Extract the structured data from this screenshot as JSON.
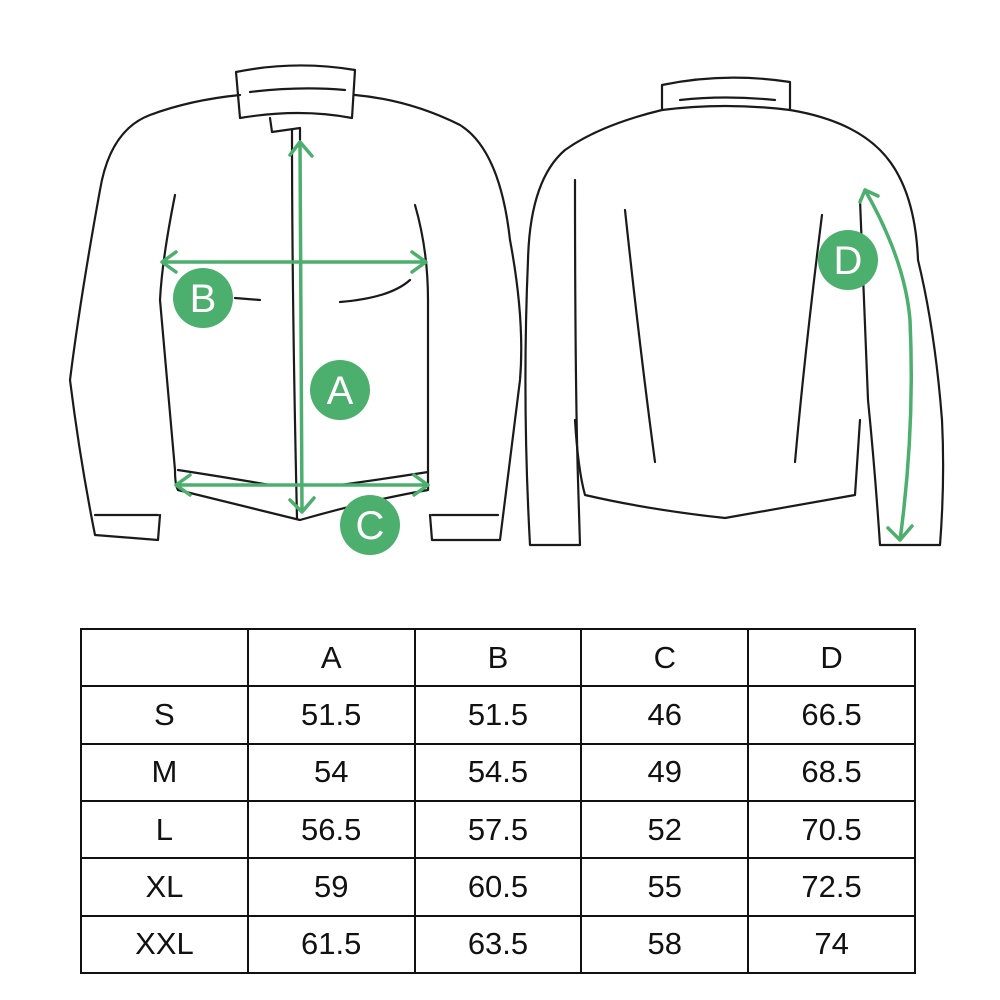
{
  "diagram": {
    "accent_color": "#4caf6e",
    "front_labels": [
      "A",
      "B",
      "C"
    ],
    "back_labels": [
      "D"
    ]
  },
  "size_table": {
    "headers": [
      "",
      "A",
      "B",
      "C",
      "D"
    ],
    "rows": [
      [
        "S",
        "51.5",
        "51.5",
        "46",
        "66.5"
      ],
      [
        "M",
        "54",
        "54.5",
        "49",
        "68.5"
      ],
      [
        "L",
        "56.5",
        "57.5",
        "52",
        "70.5"
      ],
      [
        "XL",
        "59",
        "60.5",
        "55",
        "72.5"
      ],
      [
        "XXL",
        "61.5",
        "63.5",
        "58",
        "74"
      ]
    ]
  }
}
